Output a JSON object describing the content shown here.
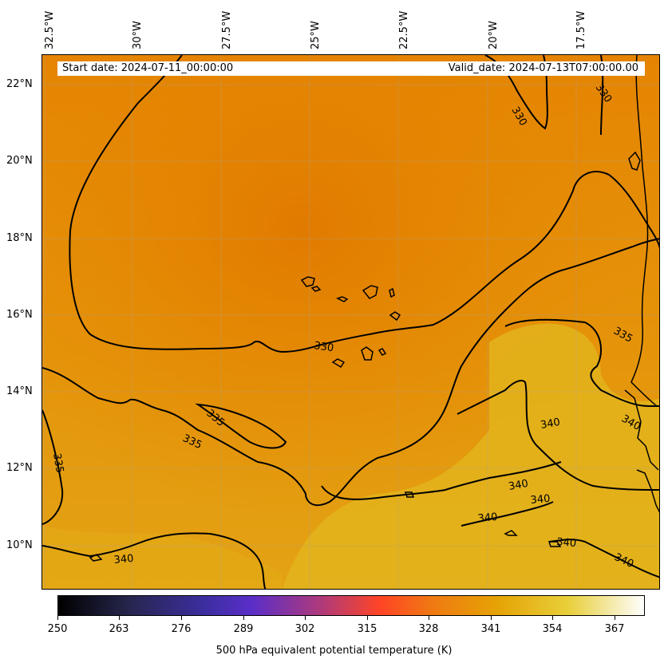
{
  "map": {
    "longitude_labels": [
      "32.5°W",
      "30°W",
      "27.5°W",
      "25°W",
      "22.5°W",
      "20°W",
      "17.5°W"
    ],
    "latitude_labels": [
      "22°N",
      "20°N",
      "18°N",
      "16°N",
      "14°N",
      "12°N",
      "10°N"
    ],
    "start_date": "Start date: 2024-07-11_00:00:00",
    "valid_date": "Valid_date: 2024-07-13T07:00:00.00",
    "contour_labels": [
      "330",
      "330",
      "330",
      "335",
      "335",
      "335",
      "335",
      "340",
      "340",
      "340",
      "340",
      "340",
      "340",
      "340",
      "340"
    ],
    "field_colors": {
      "low": "#e27f00",
      "mid": "#e59a05",
      "high": "#e3b91e"
    }
  },
  "colorbar": {
    "ticks": [
      "250",
      "263",
      "276",
      "289",
      "302",
      "315",
      "328",
      "341",
      "354",
      "367"
    ],
    "label": "500 hPa equivalent potential temperature (K)",
    "colormap": "CMRmap",
    "range": [
      250,
      373
    ]
  }
}
